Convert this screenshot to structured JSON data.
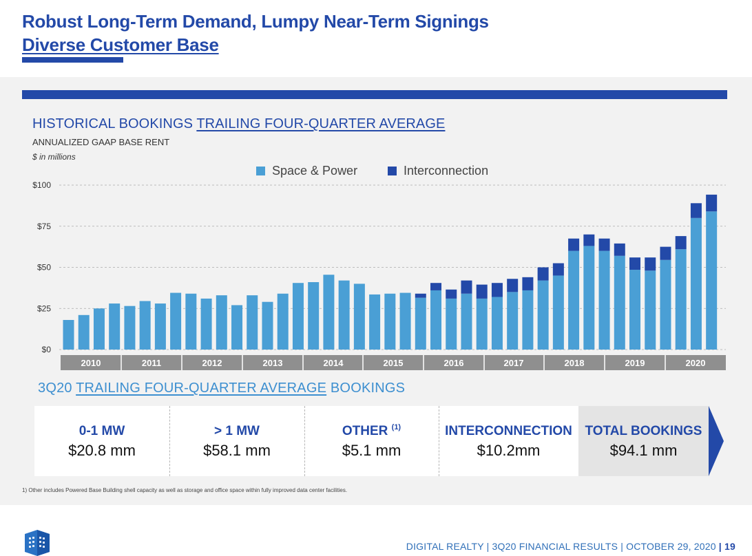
{
  "header": {
    "title_line1": "Robust Long-Term Demand, Lumpy Near-Term Signings",
    "title_line2": "Diverse Customer Base"
  },
  "chart_heading": {
    "title_part1": "HISTORICAL BOOKINGS ",
    "title_part2": "TRAILING FOUR-QUARTER AVERAGE",
    "subtitle": "ANNUALIZED GAAP BASE RENT",
    "unit": "$ in millions"
  },
  "chart_data": {
    "type": "bar",
    "stacked": true,
    "title": "HISTORICAL BOOKINGS TRAILING FOUR-QUARTER AVERAGE",
    "ylabel": "$ in millions",
    "ylim": [
      0,
      100
    ],
    "yticks": [
      0,
      25,
      50,
      75,
      100
    ],
    "ytick_labels": [
      "$0",
      "$25",
      "$50",
      "$75",
      "$100"
    ],
    "legend_position": "top-center",
    "year_labels": [
      "2010",
      "2011",
      "2012",
      "2013",
      "2014",
      "2015",
      "2016",
      "2017",
      "2018",
      "2019",
      "2020"
    ],
    "categories": [
      "2010Q1",
      "2010Q2",
      "2010Q3",
      "2010Q4",
      "2011Q1",
      "2011Q2",
      "2011Q3",
      "2011Q4",
      "2012Q1",
      "2012Q2",
      "2012Q3",
      "2012Q4",
      "2013Q1",
      "2013Q2",
      "2013Q3",
      "2013Q4",
      "2014Q1",
      "2014Q2",
      "2014Q3",
      "2014Q4",
      "2015Q1",
      "2015Q2",
      "2015Q3",
      "2015Q4",
      "2016Q1",
      "2016Q2",
      "2016Q3",
      "2016Q4",
      "2017Q1",
      "2017Q2",
      "2017Q3",
      "2017Q4",
      "2018Q1",
      "2018Q2",
      "2018Q3",
      "2018Q4",
      "2019Q1",
      "2019Q2",
      "2019Q3",
      "2019Q4",
      "2020Q1",
      "2020Q2",
      "2020Q3"
    ],
    "series": [
      {
        "name": "Space & Power",
        "color": "#4a9fd5",
        "values": [
          18,
          21,
          25,
          28,
          26.5,
          29.5,
          28,
          34.5,
          34,
          31,
          33,
          27,
          33,
          29,
          34,
          40.5,
          41,
          45.5,
          42,
          40,
          33.5,
          34,
          34.5,
          31.5,
          36,
          31,
          34,
          31,
          32,
          35,
          36,
          42,
          45,
          60,
          63,
          60,
          57,
          48.5,
          48,
          54.5,
          61,
          80,
          84
        ]
      },
      {
        "name": "Interconnection",
        "color": "#2349a8",
        "values": [
          0,
          0,
          0,
          0,
          0,
          0,
          0,
          0,
          0,
          0,
          0,
          0,
          0,
          0,
          0,
          0,
          0,
          0,
          0,
          0,
          0,
          0,
          0,
          2.5,
          4.5,
          5.5,
          8,
          8.5,
          8.5,
          8,
          8,
          8,
          7.5,
          7.5,
          7,
          7.5,
          7.5,
          7.5,
          8,
          8,
          8,
          9,
          10.2
        ]
      }
    ]
  },
  "bookings": {
    "title_part1": "3Q20 ",
    "title_part2": "TRAILING FOUR-QUARTER AVERAGE",
    "title_part3": " BOOKINGS",
    "cards": [
      {
        "label": "0-1 MW",
        "value": "$20.8 mm"
      },
      {
        "label": "> 1 MW",
        "value": "$58.1 mm"
      },
      {
        "label": "OTHER",
        "sup": "(1)",
        "value": "$5.1 mm"
      },
      {
        "label": "INTERCONNECTION",
        "value": "$10.2mm"
      },
      {
        "label": "TOTAL BOOKINGS",
        "value": "$94.1 mm"
      }
    ]
  },
  "footnote": "1) Other includes Powered Base Building shell capacity as well as storage and office space within fully improved data center facilities.",
  "footer": {
    "text": "DIGITAL REALTY | 3Q20 FINANCIAL RESULTS | OCTOBER 29, 2020",
    "separator": "|",
    "page": "19"
  }
}
